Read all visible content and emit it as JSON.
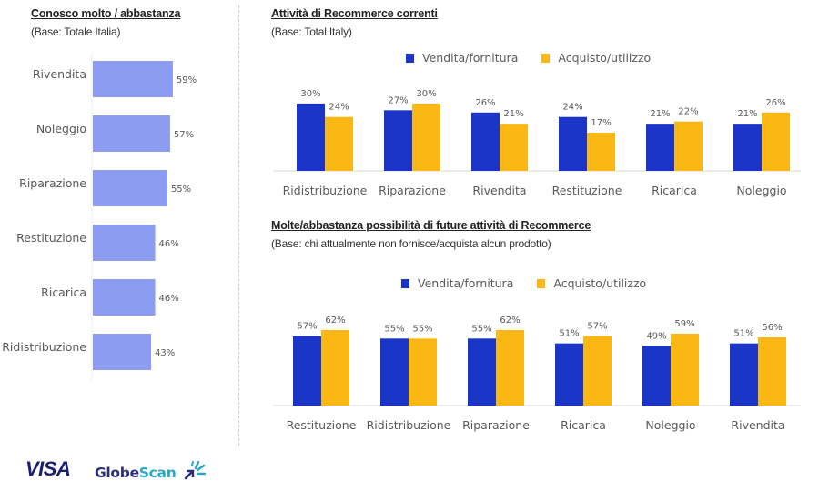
{
  "colors": {
    "awareness_bar": "#8c9cf1",
    "series_sell": "#1b35c8",
    "series_buy": "#fbb814",
    "axis": "#d9d9d9",
    "label": "#595959"
  },
  "logos": {
    "visa": "VISA",
    "globescan_part1": "Globe",
    "globescan_part2": "Scan"
  },
  "chart_data": [
    {
      "type": "bar",
      "orientation": "horizontal",
      "title": "Conosco molto / abbastanza",
      "subtitle": "(Base: Totale Italia)",
      "categories": [
        "Rivendita",
        "Noleggio",
        "Riparazione",
        "Restituzione",
        "Ricarica",
        "Ridistribuzione"
      ],
      "values": [
        59,
        57,
        55,
        46,
        46,
        43
      ],
      "value_labels": [
        "59%",
        "57%",
        "55%",
        "46%",
        "46%",
        "43%"
      ],
      "unit": "%",
      "grid": false
    },
    {
      "type": "bar",
      "orientation": "vertical",
      "title": "Attività di Recommerce correnti",
      "subtitle": "(Base: Total Italy)",
      "categories": [
        "Ridistribuzione",
        "Riparazione",
        "Rivendita",
        "Restituzione",
        "Ricarica",
        "Noleggio"
      ],
      "series": [
        {
          "name": "Vendita/fornitura",
          "values": [
            30,
            27,
            26,
            24,
            21,
            21
          ],
          "labels": [
            "30%",
            "27%",
            "26%",
            "24%",
            "21%",
            "21%"
          ]
        },
        {
          "name": "Acquisto/utilizzo",
          "values": [
            24,
            30,
            21,
            17,
            22,
            26
          ],
          "labels": [
            "24%",
            "30%",
            "21%",
            "17%",
            "22%",
            "26%"
          ]
        }
      ],
      "legend": "top-right",
      "unit": "%",
      "grid": false
    },
    {
      "type": "bar",
      "orientation": "vertical",
      "title": "Molte/abbastanza possibilità di future attività di Recommerce",
      "subtitle": "(Base: chi attualmente non fornisce/acquista alcun prodotto)",
      "categories": [
        "Restituzione",
        "Ridistribuzione",
        "Riparazione",
        "Ricarica",
        "Noleggio",
        "Rivendita"
      ],
      "series": [
        {
          "name": "Vendita/fornitura",
          "values": [
            57,
            55,
            55,
            51,
            49,
            51
          ],
          "labels": [
            "57%",
            "55%",
            "55%",
            "51%",
            "49%",
            "51%"
          ]
        },
        {
          "name": "Acquisto/utilizzo",
          "values": [
            62,
            55,
            62,
            57,
            59,
            56
          ],
          "labels": [
            "62%",
            "55%",
            "62%",
            "57%",
            "59%",
            "56%"
          ]
        }
      ],
      "legend": "top-right",
      "unit": "%",
      "grid": false
    }
  ]
}
